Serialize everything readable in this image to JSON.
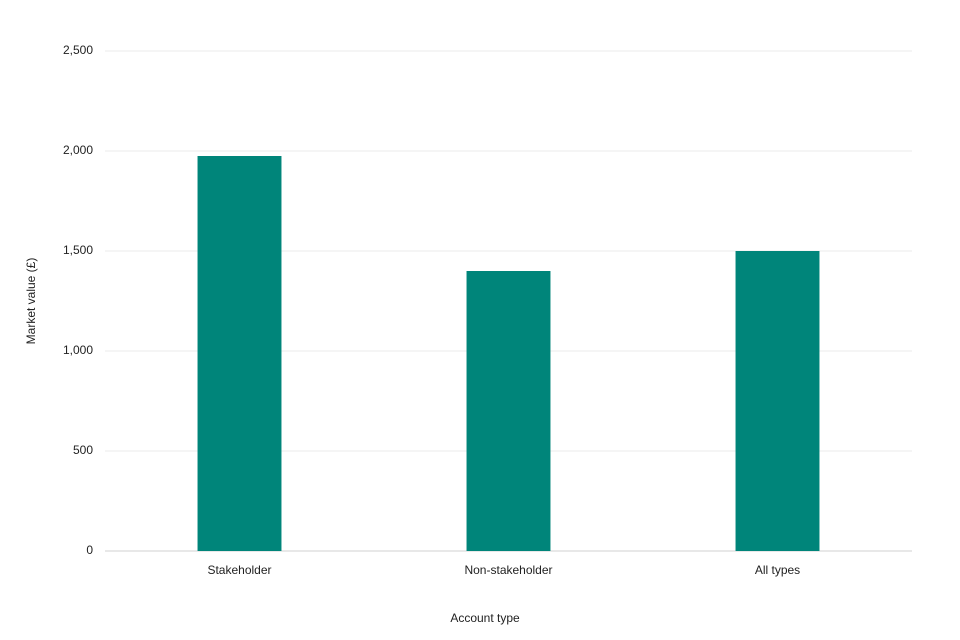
{
  "chart_data": {
    "type": "bar",
    "x_label": "Account type",
    "y_label": "Market value (£)",
    "categories": [
      "Stakeholder",
      "Non-stakeholder",
      "All types"
    ],
    "values": [
      1975,
      1400,
      1500
    ],
    "color": "#00857a",
    "ylim": [
      0,
      2500
    ],
    "yticks": [
      0,
      500,
      {
        "value": 1000,
        "label": "1,000"
      },
      {
        "value": 1500,
        "label": "1,500"
      },
      {
        "value": 2000,
        "label": "2,000"
      },
      {
        "value": 2500,
        "label": "2,500"
      }
    ],
    "grid": true
  }
}
